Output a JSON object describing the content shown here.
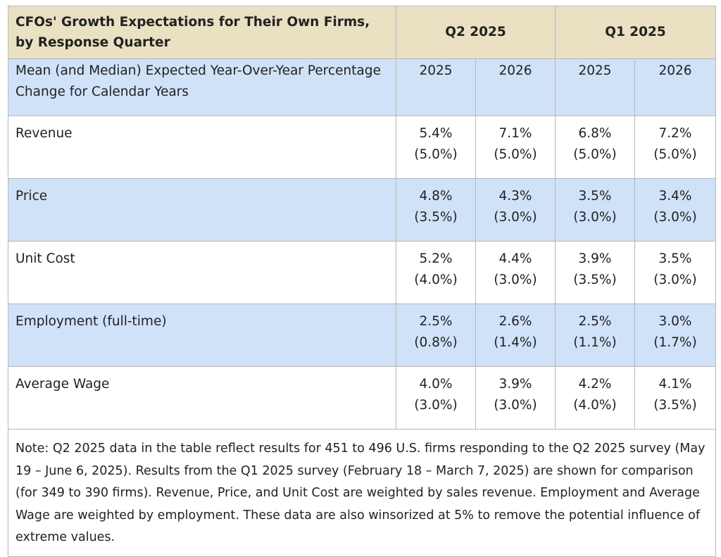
{
  "chart_data": {
    "type": "table",
    "title": "CFOs' Growth Expectations for Their Own Firms, by Response Quarter",
    "column_groups": [
      "Q2 2025",
      "Q1 2025"
    ],
    "row_header": "Mean (and Median) Expected Year-Over-Year Percentage Change for Calendar Years",
    "years": [
      "2025",
      "2026",
      "2025",
      "2026"
    ],
    "rows": [
      {
        "label": "Revenue",
        "means": [
          "5.4%",
          "7.1%",
          "6.8%",
          "7.2%"
        ],
        "medians": [
          "(5.0%)",
          "(5.0%)",
          "(5.0%)",
          "(5.0%)"
        ]
      },
      {
        "label": "Price",
        "means": [
          "4.8%",
          "4.3%",
          "3.5%",
          "3.4%"
        ],
        "medians": [
          "(3.5%)",
          "(3.0%)",
          "(3.0%)",
          "(3.0%)"
        ]
      },
      {
        "label": "Unit Cost",
        "means": [
          "5.2%",
          "4.4%",
          "3.9%",
          "3.5%"
        ],
        "medians": [
          "(4.0%)",
          "(3.0%)",
          "(3.5%)",
          "(3.0%)"
        ]
      },
      {
        "label": "Employment (full-time)",
        "means": [
          "2.5%",
          "2.6%",
          "2.5%",
          "3.0%"
        ],
        "medians": [
          "(0.8%)",
          "(1.4%)",
          "(1.1%)",
          "(1.7%)"
        ]
      },
      {
        "label": "Average Wage",
        "means": [
          "4.0%",
          "3.9%",
          "4.2%",
          "4.1%"
        ],
        "medians": [
          "(3.0%)",
          "(3.0%)",
          "(4.0%)",
          "(3.5%)"
        ]
      }
    ],
    "note": "Note: Q2 2025 data in the table reflect results for 451 to 496 U.S. firms responding to the Q2 2025 survey (May 19 – June 6, 2025). Results from the Q1 2025 survey (February 18 – March 7, 2025) are shown for comparison (for 349 to 390 firms). Revenue, Price, and Unit Cost are weighted by sales revenue. Employment and Average Wage are weighted by employment. These data are also winsorized at 5% to remove the potential influence of extreme values."
  },
  "colors": {
    "header_bg": "#e9e1c1",
    "alt_row_bg": "#cfe2f8",
    "border": "#b7b7b7"
  }
}
